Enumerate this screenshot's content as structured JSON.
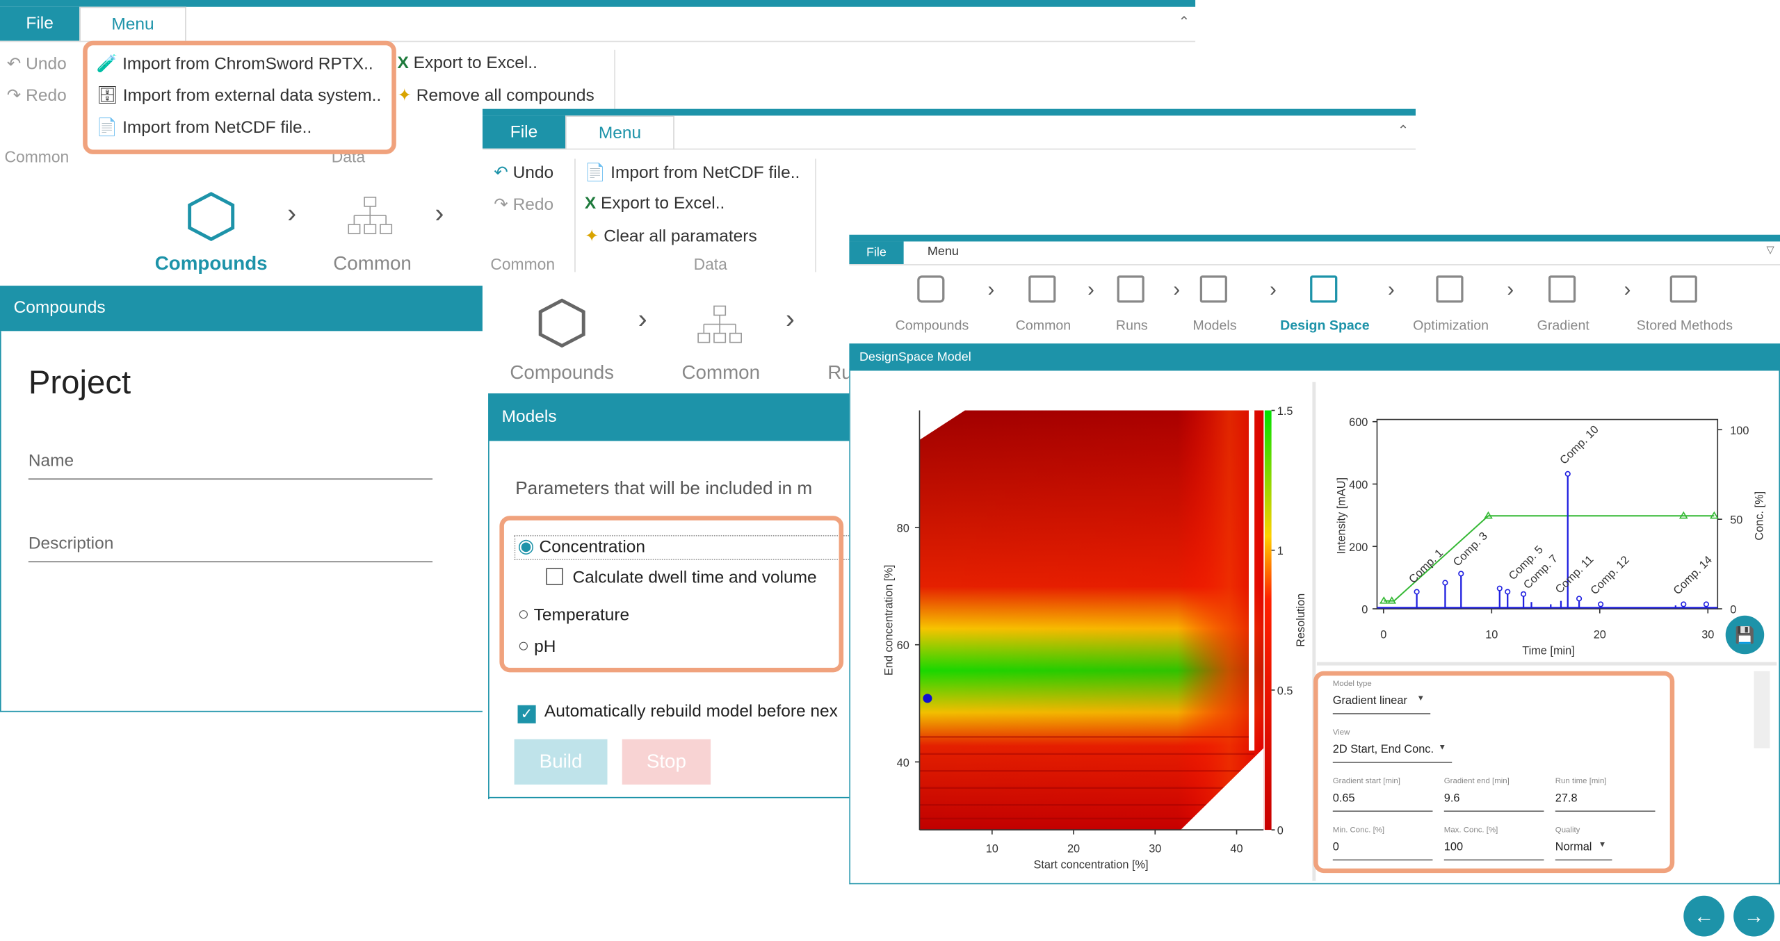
{
  "window1": {
    "tabs": [
      "File",
      "Menu"
    ],
    "undo": "Undo",
    "redo": "Redo",
    "groups": [
      "Common",
      "Data"
    ],
    "items": [
      "Import from ChromSword RPTX..",
      "Import from external data system..",
      "Import from NetCDF file..",
      "Export to Excel..",
      "Remove all compounds"
    ],
    "nav": [
      "Compounds",
      "Common"
    ],
    "header": "Compounds",
    "project": "Project",
    "fields": [
      "Name",
      "Description"
    ]
  },
  "window2": {
    "tabs": [
      "File",
      "Menu"
    ],
    "undo": "Undo",
    "redo": "Redo",
    "groups": [
      "Common",
      "Data"
    ],
    "items": [
      "Import from NetCDF file..",
      "Export to Excel..",
      "Clear all paramaters"
    ],
    "nav": [
      "Compounds",
      "Common",
      "Ru"
    ],
    "header": "Models",
    "intro": "Parameters that will be included in m",
    "options": [
      "Concentration",
      "Calculate dwell time and volume",
      "Temperature",
      "pH"
    ],
    "auto_rebuild": "Automatically rebuild model before nex",
    "buttons": [
      "Build",
      "Stop"
    ]
  },
  "window3": {
    "tabs": [
      "File",
      "Menu"
    ],
    "nav": [
      "Compounds",
      "Common",
      "Runs",
      "Models",
      "Design Space",
      "Optimization",
      "Gradient",
      "Stored Methods"
    ],
    "header": "DesignSpace Model",
    "heatmap": {
      "xlabel": "Start concentration [%]",
      "ylabel": "End concentration [%]",
      "colorbar_label": "Resolution",
      "xlim": [
        1.1,
        43.3
      ],
      "ylim": [
        28.4,
        100
      ],
      "colorbar_lim": [
        0,
        1.5
      ],
      "xticks": [
        10,
        20,
        30,
        40
      ],
      "yticks": [
        40,
        60,
        80
      ],
      "colorbar_ticks": [
        0,
        0.5,
        1,
        1.5
      ]
    },
    "chromatogram": {
      "xlabel": "Time [min]",
      "ylabel": "Intensity [mAU]",
      "y2label": "Conc. [%]",
      "xlim": [
        -0.6,
        30.9
      ],
      "ylim": [
        0,
        607
      ],
      "y2lim": [
        0,
        105.7
      ],
      "xticks": [
        0,
        10,
        20,
        30
      ],
      "yticks": [
        0,
        200,
        400,
        600
      ],
      "y2ticks": [
        0,
        50,
        100
      ],
      "peak_labels": [
        "Comp. 1",
        "Comp. 3",
        "Comp. 5",
        "Comp. 7",
        "Comp. 10",
        "Comp. 11",
        "Comp. 12",
        "Comp. 14"
      ]
    },
    "form": [
      {
        "label": "Model type",
        "value": "Gradient linear"
      },
      {
        "label": "View",
        "value": "2D Start, End Conc."
      },
      {
        "label": "Gradient start [min]",
        "value": "0.65"
      },
      {
        "label": "Gradient end [min]",
        "value": "9.6"
      },
      {
        "label": "Run time [min]",
        "value": "27.8"
      },
      {
        "label": "Min. Conc. [%]",
        "value": "0"
      },
      {
        "label": "Max. Conc. [%]",
        "value": "100"
      },
      {
        "label": "Quality",
        "value": "Normal"
      }
    ]
  }
}
